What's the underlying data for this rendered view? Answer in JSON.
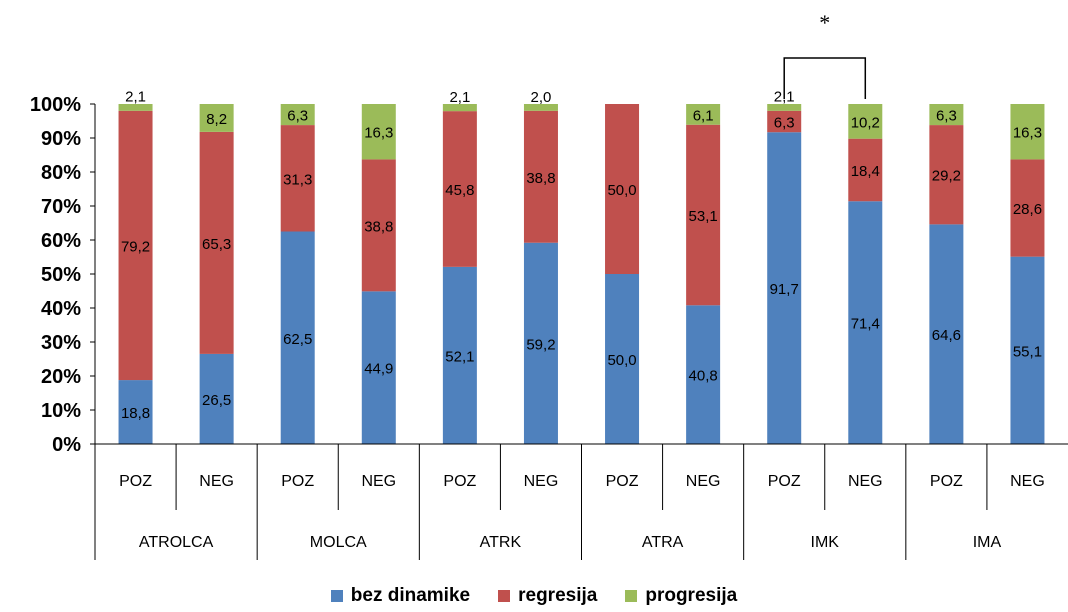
{
  "chart_data": {
    "type": "bar",
    "stacked": true,
    "annotation": "*",
    "y_axis": {
      "min": 0,
      "max": 100,
      "ticks": [
        "0%",
        "10%",
        "20%",
        "30%",
        "40%",
        "50%",
        "60%",
        "70%",
        "80%",
        "90%",
        "100%"
      ]
    },
    "groups": [
      {
        "label": "ATROLCA",
        "categories": [
          "POZ",
          "NEG"
        ]
      },
      {
        "label": "MOLCA",
        "categories": [
          "POZ",
          "NEG"
        ]
      },
      {
        "label": "ATRK",
        "categories": [
          "POZ",
          "NEG"
        ]
      },
      {
        "label": "ATRA",
        "categories": [
          "POZ",
          "NEG"
        ]
      },
      {
        "label": "IMK",
        "categories": [
          "POZ",
          "NEG"
        ]
      },
      {
        "label": "IMA",
        "categories": [
          "POZ",
          "NEG"
        ]
      }
    ],
    "categories": [
      "POZ",
      "NEG",
      "POZ",
      "NEG",
      "POZ",
      "NEG",
      "POZ",
      "NEG",
      "POZ",
      "NEG",
      "POZ",
      "NEG"
    ],
    "series": [
      {
        "name": "bez dinamike",
        "color": "#4f81bd",
        "values": [
          18.8,
          26.5,
          62.5,
          44.9,
          52.1,
          59.2,
          50.0,
          40.8,
          91.7,
          71.4,
          64.6,
          55.1
        ],
        "labels": [
          "18,8",
          "26,5",
          "62,5",
          "44,9",
          "52,1",
          "59,2",
          "50,0",
          "40,8",
          "91,7",
          "71,4",
          "64,6",
          "55,1"
        ]
      },
      {
        "name": "regresija",
        "color": "#c0504d",
        "values": [
          79.2,
          65.3,
          31.3,
          38.8,
          45.8,
          38.8,
          50.0,
          53.1,
          6.3,
          18.4,
          29.2,
          28.6
        ],
        "labels": [
          "79,2",
          "65,3",
          "31,3",
          "38,8",
          "45,8",
          "38,8",
          "50,0",
          "53,1",
          "6,3",
          "18,4",
          "29,2",
          "28,6"
        ]
      },
      {
        "name": "progresija",
        "color": "#9bbb59",
        "values": [
          2.1,
          8.2,
          6.3,
          16.3,
          2.1,
          2.0,
          0,
          6.1,
          2.1,
          10.2,
          6.3,
          16.3
        ],
        "labels": [
          "2,1",
          "8,2",
          "6,3",
          "16,3",
          "2,1",
          "2,0",
          "",
          "6,1",
          "2,1",
          "10,2",
          "6,3",
          "16,3"
        ]
      }
    ]
  }
}
